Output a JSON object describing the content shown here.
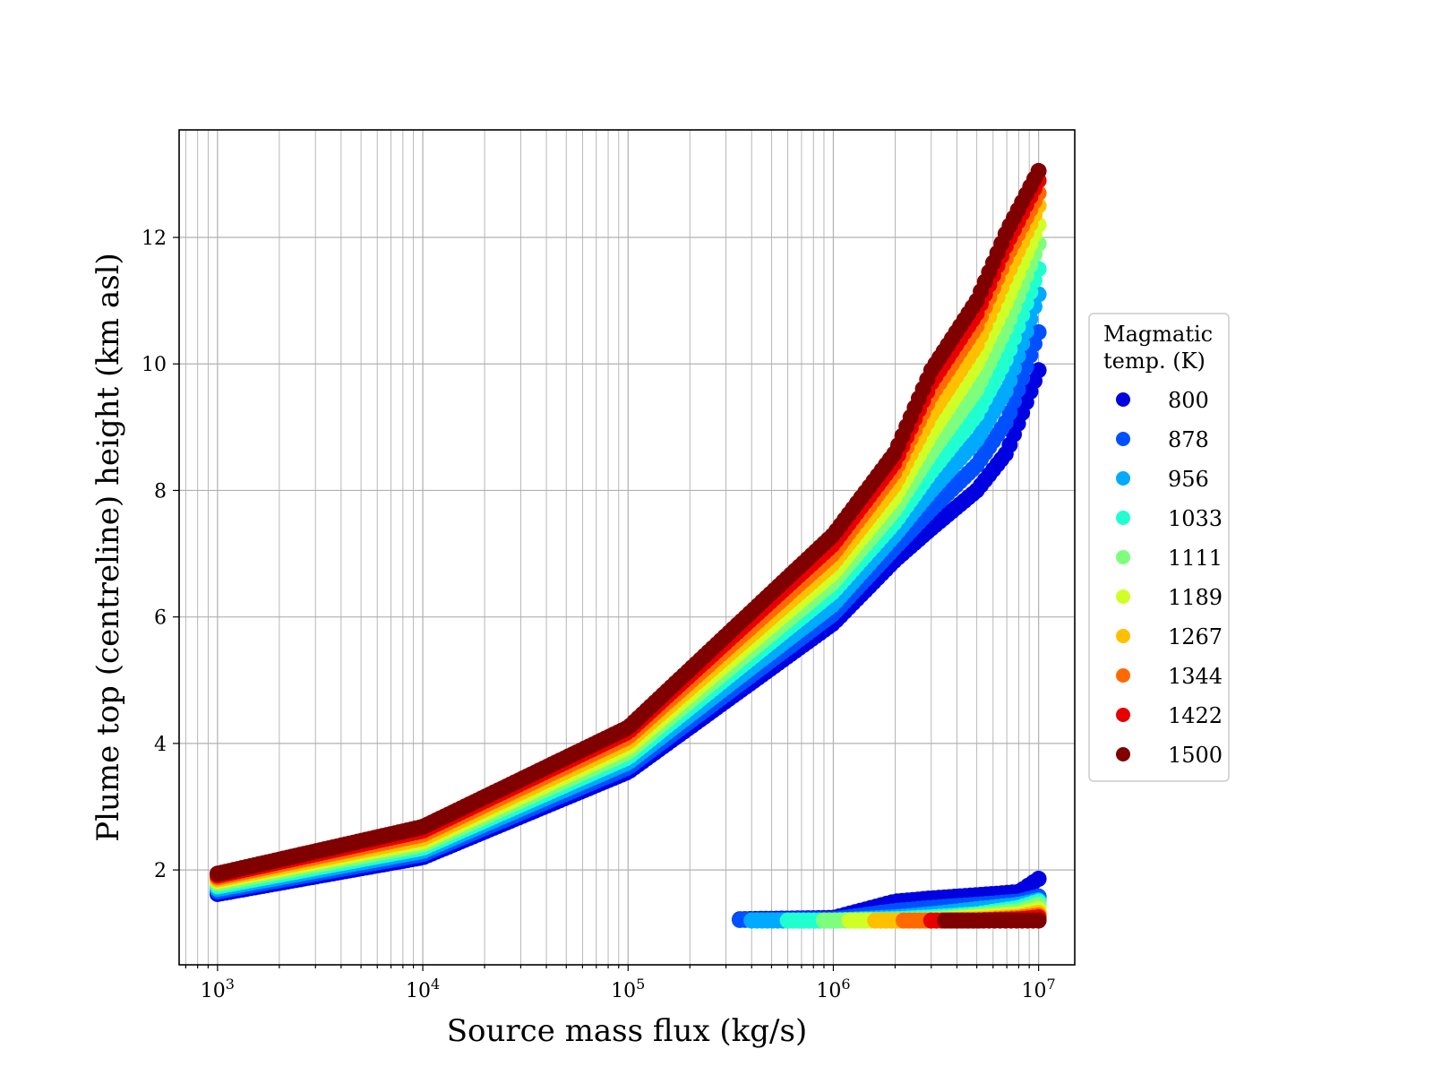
{
  "chart_data": {
    "type": "scatter",
    "title": "",
    "xlabel": "Source mass flux (kg/s)",
    "ylabel": "Plume top (centreline) height (km asl)",
    "xscale": "log",
    "xlim": [
      650,
      15000000
    ],
    "ylim": [
      0.5,
      13.7
    ],
    "grid": "major and minor (x), major (y)",
    "x_ticks": [
      {
        "value": 1000,
        "base": "10",
        "exp": "3"
      },
      {
        "value": 10000,
        "base": "10",
        "exp": "4"
      },
      {
        "value": 100000,
        "base": "10",
        "exp": "5"
      },
      {
        "value": 1000000,
        "base": "10",
        "exp": "6"
      },
      {
        "value": 10000000,
        "base": "10",
        "exp": "7"
      }
    ],
    "y_ticks": [
      2,
      4,
      6,
      8,
      10,
      12
    ],
    "legend": {
      "title_lines": [
        "Magmatic",
        "temp. (K)"
      ],
      "placement": "outside right"
    },
    "series": [
      {
        "name": "800",
        "color": "#0000e0",
        "main": {
          "x": [
            1000,
            10000,
            100000,
            1000000,
            2000000,
            3000000,
            5000000,
            7000000,
            10000000
          ],
          "y": [
            1.62,
            2.2,
            3.55,
            5.9,
            6.9,
            7.4,
            8.0,
            8.6,
            9.9
          ]
        },
        "low": {
          "x": [
            350000,
            1000000,
            2000000,
            3000000,
            5000000,
            8000000,
            10000000
          ],
          "y": [
            1.22,
            1.24,
            1.5,
            1.55,
            1.6,
            1.65,
            1.86
          ]
        }
      },
      {
        "name": "878",
        "color": "#0050ff",
        "main": {
          "x": [
            1000,
            10000,
            100000,
            1000000,
            2000000,
            3000000,
            5000000,
            7000000,
            10000000
          ],
          "y": [
            1.66,
            2.25,
            3.62,
            6.05,
            7.1,
            7.7,
            8.4,
            9.1,
            10.5
          ]
        },
        "low": {
          "x": [
            350000,
            1000000,
            2000000,
            3000000,
            5000000,
            8000000,
            10000000
          ],
          "y": [
            1.21,
            1.22,
            1.35,
            1.4,
            1.45,
            1.5,
            1.58
          ]
        }
      },
      {
        "name": "956",
        "color": "#00aaff",
        "main": {
          "x": [
            1000,
            10000,
            100000,
            1000000,
            2000000,
            3000000,
            5000000,
            7000000,
            10000000
          ],
          "y": [
            1.7,
            2.3,
            3.7,
            6.2,
            7.3,
            8.0,
            8.8,
            9.6,
            11.1
          ]
        },
        "low": {
          "x": [
            400000,
            1000000,
            2000000,
            3000000,
            5000000,
            8000000,
            10000000
          ],
          "y": [
            1.2,
            1.2,
            1.25,
            1.3,
            1.38,
            1.45,
            1.52
          ]
        }
      },
      {
        "name": "1033",
        "color": "#20ffd0",
        "main": {
          "x": [
            1000,
            10000,
            100000,
            1000000,
            2000000,
            3000000,
            5000000,
            7000000,
            10000000
          ],
          "y": [
            1.74,
            2.35,
            3.78,
            6.4,
            7.5,
            8.3,
            9.2,
            10.1,
            11.5
          ]
        },
        "low": {
          "x": [
            600000,
            1000000,
            2000000,
            3000000,
            5000000,
            8000000,
            10000000
          ],
          "y": [
            1.2,
            1.2,
            1.22,
            1.25,
            1.3,
            1.4,
            1.5
          ]
        }
      },
      {
        "name": "1111",
        "color": "#7dff7d",
        "main": {
          "x": [
            1000,
            10000,
            100000,
            1000000,
            2000000,
            3000000,
            5000000,
            7000000,
            10000000
          ],
          "y": [
            1.78,
            2.4,
            3.86,
            6.55,
            7.7,
            8.6,
            9.6,
            10.6,
            11.9
          ]
        },
        "low": {
          "x": [
            900000,
            1000000,
            2000000,
            3000000,
            5000000,
            8000000,
            10000000
          ],
          "y": [
            1.2,
            1.2,
            1.2,
            1.22,
            1.28,
            1.35,
            1.45
          ]
        }
      },
      {
        "name": "1189",
        "color": "#d0ff28",
        "main": {
          "x": [
            1000,
            10000,
            100000,
            1000000,
            2000000,
            3000000,
            5000000,
            7000000,
            10000000
          ],
          "y": [
            1.82,
            2.45,
            3.94,
            6.7,
            7.9,
            8.9,
            10.0,
            11.0,
            12.2
          ]
        },
        "low": {
          "x": [
            1200000,
            2000000,
            3000000,
            5000000,
            8000000,
            10000000
          ],
          "y": [
            1.2,
            1.2,
            1.2,
            1.25,
            1.3,
            1.38
          ]
        }
      },
      {
        "name": "1267",
        "color": "#ffc000",
        "main": {
          "x": [
            1000,
            10000,
            100000,
            1000000,
            2000000,
            3000000,
            5000000,
            7000000,
            10000000
          ],
          "y": [
            1.85,
            2.5,
            4.02,
            6.85,
            8.1,
            9.2,
            10.3,
            11.4,
            12.5
          ]
        },
        "low": {
          "x": [
            1600000,
            2000000,
            3000000,
            5000000,
            8000000,
            10000000
          ],
          "y": [
            1.2,
            1.2,
            1.2,
            1.22,
            1.26,
            1.32
          ]
        }
      },
      {
        "name": "1344",
        "color": "#ff6a00",
        "main": {
          "x": [
            1000,
            10000,
            100000,
            1000000,
            2000000,
            3000000,
            5000000,
            7000000,
            10000000
          ],
          "y": [
            1.88,
            2.56,
            4.1,
            7.0,
            8.3,
            9.5,
            10.6,
            11.7,
            12.7
          ]
        },
        "low": {
          "x": [
            2200000,
            3000000,
            5000000,
            8000000,
            10000000
          ],
          "y": [
            1.2,
            1.2,
            1.2,
            1.24,
            1.28
          ]
        }
      },
      {
        "name": "1422",
        "color": "#e80000",
        "main": {
          "x": [
            1000,
            10000,
            100000,
            1000000,
            2000000,
            3000000,
            5000000,
            7000000,
            10000000
          ],
          "y": [
            1.91,
            2.62,
            4.18,
            7.15,
            8.45,
            9.7,
            10.8,
            11.9,
            12.9
          ]
        },
        "low": {
          "x": [
            3000000,
            5000000,
            8000000,
            10000000
          ],
          "y": [
            1.2,
            1.2,
            1.22,
            1.25
          ]
        }
      },
      {
        "name": "1500",
        "color": "#800000",
        "main": {
          "x": [
            1000,
            10000,
            100000,
            1000000,
            2000000,
            3000000,
            5000000,
            7000000,
            10000000
          ],
          "y": [
            1.94,
            2.68,
            4.25,
            7.3,
            8.6,
            9.9,
            11.0,
            12.1,
            13.05
          ]
        },
        "low": {
          "x": [
            3500000,
            5000000,
            8000000,
            10000000
          ],
          "y": [
            1.2,
            1.2,
            1.2,
            1.2
          ]
        }
      }
    ]
  }
}
